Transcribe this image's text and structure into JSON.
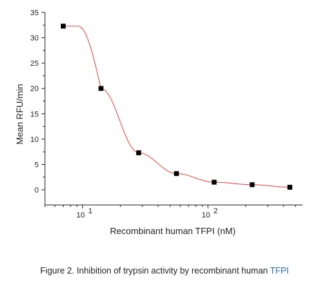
{
  "chart_data": {
    "type": "scatter",
    "xscale": "log",
    "xlabel": "Recombinant human TFPI (nM)",
    "ylabel": "Mean RFU/min",
    "xlim": [
      5,
      570
    ],
    "ylim": [
      -3,
      35
    ],
    "y_ticks": [
      0,
      5,
      10,
      15,
      20,
      25,
      30,
      35
    ],
    "x_ticks": [
      {
        "value": 10,
        "base": "10",
        "exp": "1"
      },
      {
        "value": 100,
        "base": "10",
        "exp": "2"
      }
    ],
    "series": [
      {
        "x": [
          7,
          14,
          28,
          56,
          112,
          225,
          450
        ],
        "y": [
          32.3,
          20.0,
          7.3,
          3.2,
          1.5,
          1.0,
          0.5
        ]
      }
    ],
    "fit_color": "#e0524f",
    "marker_color": "#000000",
    "grid": false
  },
  "caption": {
    "main": "Figure 2. Inhibition of trypsin activity by recombinant human ",
    "highlight": "TFPI",
    "highlight_color": "#2b6cb0"
  }
}
